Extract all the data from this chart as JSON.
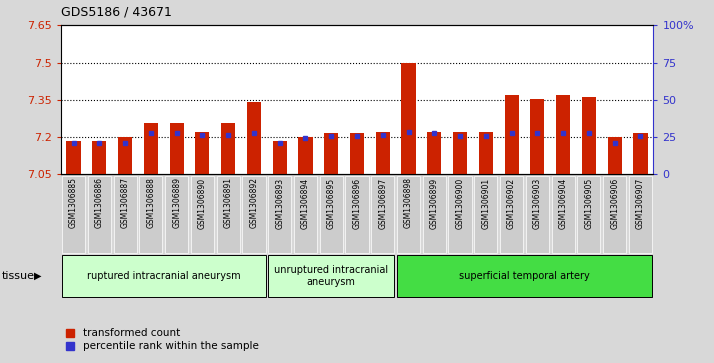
{
  "title": "GDS5186 / 43671",
  "samples": [
    "GSM1306885",
    "GSM1306886",
    "GSM1306887",
    "GSM1306888",
    "GSM1306889",
    "GSM1306890",
    "GSM1306891",
    "GSM1306892",
    "GSM1306893",
    "GSM1306894",
    "GSM1306895",
    "GSM1306896",
    "GSM1306897",
    "GSM1306898",
    "GSM1306899",
    "GSM1306900",
    "GSM1306901",
    "GSM1306902",
    "GSM1306903",
    "GSM1306904",
    "GSM1306905",
    "GSM1306906",
    "GSM1306907"
  ],
  "red_values": [
    7.185,
    7.185,
    7.2,
    7.255,
    7.255,
    7.22,
    7.255,
    7.34,
    7.185,
    7.2,
    7.215,
    7.215,
    7.22,
    7.5,
    7.22,
    7.22,
    7.22,
    7.37,
    7.355,
    7.37,
    7.36,
    7.2,
    7.215
  ],
  "blue_values": [
    7.175,
    7.175,
    7.175,
    7.215,
    7.215,
    7.21,
    7.21,
    7.215,
    7.175,
    7.195,
    7.205,
    7.205,
    7.21,
    7.22,
    7.215,
    7.205,
    7.205,
    7.215,
    7.215,
    7.215,
    7.215,
    7.175,
    7.205
  ],
  "groups": [
    {
      "label": "ruptured intracranial aneurysm",
      "start": 0,
      "end": 7,
      "color": "#ccffcc"
    },
    {
      "label": "unruptured intracranial\naneurysm",
      "start": 8,
      "end": 12,
      "color": "#ccffcc"
    },
    {
      "label": "superficial temporal artery",
      "start": 13,
      "end": 22,
      "color": "#44dd44"
    }
  ],
  "ymin": 7.05,
  "ymax": 7.65,
  "yticks": [
    7.05,
    7.2,
    7.35,
    7.5,
    7.65
  ],
  "ytick_labels": [
    "7.05",
    "7.2",
    "7.35",
    "7.5",
    "7.65"
  ],
  "grid_lines": [
    7.2,
    7.35,
    7.5
  ],
  "right_yticks": [
    0,
    25,
    50,
    75,
    100
  ],
  "right_ytick_labels": [
    "0",
    "25",
    "50",
    "75",
    "100%"
  ],
  "bar_color": "#cc2200",
  "blue_color": "#3333cc",
  "bg_color": "#d8d8d8",
  "plot_bg": "#ffffff",
  "tick_bg": "#cccccc"
}
